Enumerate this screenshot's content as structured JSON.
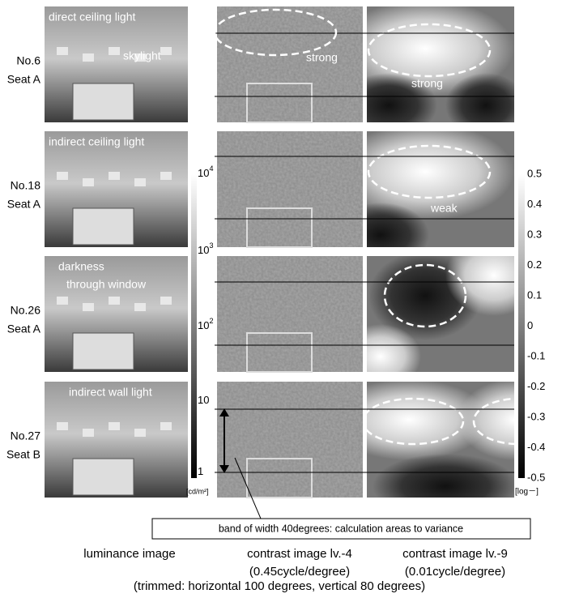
{
  "rows": [
    {
      "number": "No.6",
      "seat": "Seat A",
      "photo_texts": [
        "direct ceiling light",
        "skylight"
      ],
      "contrast_note": "strong",
      "blur_note": "strong"
    },
    {
      "number": "No.18",
      "seat": "Seat A",
      "photo_texts": [
        "indirect ceiling light"
      ],
      "blur_note": "weak"
    },
    {
      "number": "No.26",
      "seat": "Seat A",
      "photo_texts": [
        "darkness",
        "through window"
      ]
    },
    {
      "number": "No.27",
      "seat": "Seat B",
      "photo_texts": [
        "indirect wall light"
      ]
    }
  ],
  "luminance_scale": {
    "ticks": [
      {
        "base": "10",
        "exp": "4"
      },
      {
        "base": "10",
        "exp": "3"
      },
      {
        "base": "10",
        "exp": "2"
      },
      {
        "base": "10"
      },
      {
        "base": "1"
      }
    ],
    "unit": "[cd/m²]"
  },
  "contrast_scale": {
    "ticks": [
      "0.5",
      "0.4",
      "0.3",
      "0.2",
      "0.1",
      "0",
      "-0.1",
      "-0.2",
      "-0.3",
      "-0.4",
      "-0.5"
    ],
    "unit": "[log－]"
  },
  "band_note": "band of width 40degrees: calculation areas to variance",
  "captions": {
    "luminance": [
      "luminance image"
    ],
    "contrast_lv4": [
      "contrast image lv.-4",
      "(0.45cycle/degree)"
    ],
    "contrast_lv9": [
      "contrast image lv.-9",
      "(0.01cycle/degree)"
    ]
  },
  "trim_note": "(trimmed: horizontal 100 degrees, vertical 80 degrees)"
}
